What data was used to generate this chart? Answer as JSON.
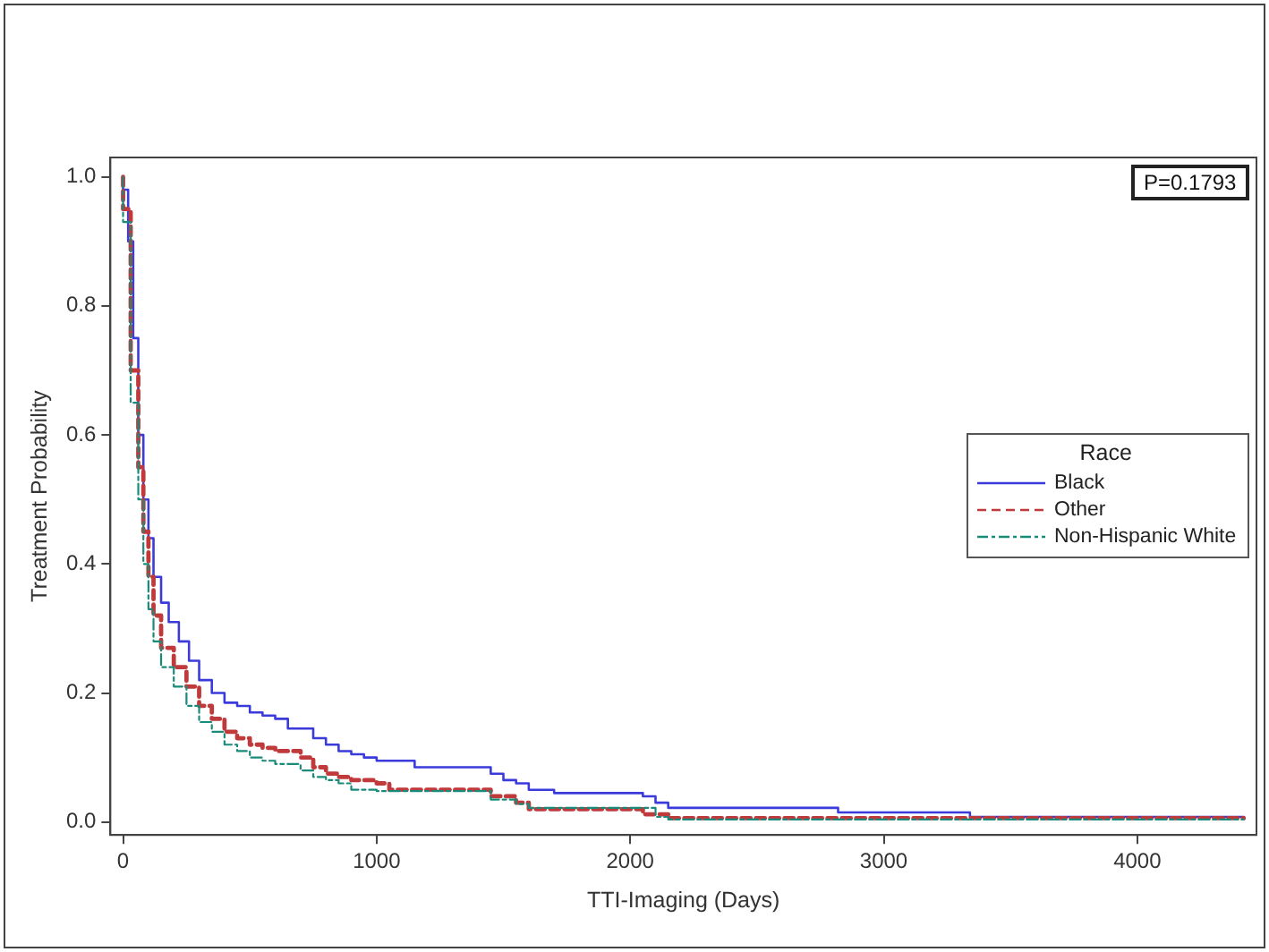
{
  "chart_data": {
    "type": "step",
    "xlabel": "TTI-Imaging (Days)",
    "ylabel": "Treatment Probability",
    "legend_title": "Race",
    "legend": "right",
    "grid": false,
    "xlim": [
      -50,
      4470
    ],
    "xticks": [
      0,
      1000,
      2000,
      3000,
      4000
    ],
    "ylim": [
      -0.02,
      1.03
    ],
    "yticks": [
      {
        "value": 0,
        "label": "0.0"
      },
      {
        "value": 0.2,
        "label": "0.2"
      },
      {
        "value": 0.4,
        "label": "0.4"
      },
      {
        "value": 0.6,
        "label": "0.6"
      },
      {
        "value": 0.8,
        "label": "0.8"
      },
      {
        "value": 1,
        "label": "1.0"
      }
    ],
    "annotations": [
      "P=0.1793"
    ],
    "series": [
      {
        "name": "Black",
        "color": "#3b3bdc",
        "line_style": "solid",
        "x": [
          0,
          20,
          40,
          60,
          80,
          100,
          120,
          150,
          180,
          220,
          260,
          300,
          350,
          400,
          450,
          500,
          550,
          600,
          650,
          750,
          800,
          850,
          900,
          950,
          1000,
          1150,
          1450,
          1500,
          1550,
          1600,
          1700,
          2050,
          2100,
          2150,
          2820,
          3340,
          4050,
          4420
        ],
        "values": [
          1.0,
          0.98,
          0.9,
          0.75,
          0.6,
          0.5,
          0.44,
          0.38,
          0.34,
          0.31,
          0.28,
          0.25,
          0.22,
          0.2,
          0.185,
          0.18,
          0.17,
          0.165,
          0.16,
          0.145,
          0.13,
          0.12,
          0.11,
          0.105,
          0.1,
          0.095,
          0.085,
          0.075,
          0.065,
          0.06,
          0.05,
          0.045,
          0.04,
          0.03,
          0.022,
          0.015,
          0.008,
          0.008
        ]
      },
      {
        "name": "Other",
        "color": "#c0393b",
        "line_style": "dashed",
        "x": [
          0,
          30,
          60,
          80,
          100,
          120,
          150,
          200,
          250,
          300,
          350,
          400,
          450,
          500,
          550,
          600,
          700,
          750,
          800,
          850,
          900,
          1000,
          1050,
          1450,
          1550,
          1600,
          2050,
          2150,
          3350,
          4420
        ],
        "values": [
          1.0,
          0.95,
          0.7,
          0.55,
          0.45,
          0.38,
          0.32,
          0.27,
          0.24,
          0.21,
          0.18,
          0.16,
          0.14,
          0.13,
          0.12,
          0.115,
          0.11,
          0.1,
          0.085,
          0.075,
          0.07,
          0.065,
          0.06,
          0.05,
          0.04,
          0.03,
          0.02,
          0.012,
          0.006,
          0.006
        ]
      },
      {
        "name": "Non-Hispanic White",
        "color": "#1a8a7a",
        "line_style": "dashdot",
        "x": [
          0,
          30,
          60,
          80,
          100,
          120,
          150,
          200,
          250,
          300,
          350,
          400,
          450,
          500,
          550,
          600,
          700,
          750,
          800,
          850,
          900,
          1000,
          1450,
          1550,
          1600,
          2100,
          2150,
          3350,
          4420
        ],
        "values": [
          1.0,
          0.93,
          0.65,
          0.5,
          0.4,
          0.33,
          0.28,
          0.24,
          0.21,
          0.18,
          0.155,
          0.14,
          0.12,
          0.11,
          0.1,
          0.095,
          0.09,
          0.08,
          0.07,
          0.065,
          0.06,
          0.05,
          0.048,
          0.035,
          0.028,
          0.022,
          0.008,
          0.004,
          0.004
        ]
      }
    ]
  }
}
